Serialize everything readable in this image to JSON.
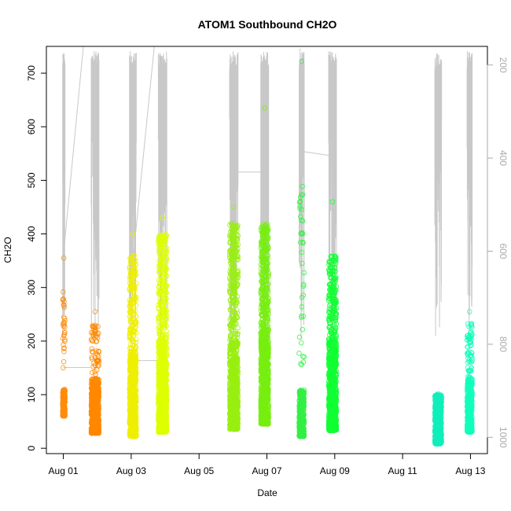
{
  "chart_data": {
    "type": "scatter",
    "title": "ATOM1 Southbound CH2O",
    "xlabel": "Date",
    "ylabel": "CH2O",
    "x_range_days": [
      -0.5,
      12.5
    ],
    "x_ticks": [
      {
        "day": 0,
        "label": "Aug 01"
      },
      {
        "day": 2,
        "label": "Aug 03"
      },
      {
        "day": 4,
        "label": "Aug 05"
      },
      {
        "day": 6,
        "label": "Aug 07"
      },
      {
        "day": 8,
        "label": "Aug 09"
      },
      {
        "day": 10,
        "label": "Aug 11"
      },
      {
        "day": 12,
        "label": "Aug 13"
      }
    ],
    "ylim": [
      -10,
      750
    ],
    "y_ticks": [
      0,
      100,
      200,
      300,
      400,
      500,
      600,
      700
    ],
    "right_axis": {
      "color": "#aaaaaa",
      "range": [
        1035,
        160
      ],
      "ticks": [
        200,
        400,
        600,
        800,
        1000
      ]
    },
    "grid": false,
    "legend": "none",
    "flight_clusters": [
      {
        "x_start": -0.02,
        "x_end": 0.05,
        "base_lo": 60,
        "base_hi": 110,
        "upper_lo": 150,
        "upper_hi": 300,
        "n_upper": 30,
        "max": 355,
        "color": "#FF8C0A",
        "n": 220
      },
      {
        "x_start": 0.82,
        "x_end": 1.05,
        "base_lo": 28,
        "base_hi": 130,
        "upper_lo": 130,
        "upper_hi": 230,
        "n_upper": 60,
        "max": 255,
        "color": "#FF8800",
        "n": 650
      },
      {
        "x_start": 1.95,
        "x_end": 2.15,
        "base_lo": 22,
        "base_hi": 180,
        "upper_lo": 180,
        "upper_hi": 360,
        "n_upper": 180,
        "max": 400,
        "color": "#EEEE00",
        "n": 650
      },
      {
        "x_start": 2.8,
        "x_end": 3.05,
        "base_lo": 30,
        "base_hi": 200,
        "upper_lo": 200,
        "upper_hi": 400,
        "n_upper": 260,
        "max": 430,
        "color": "#DDFF00",
        "n": 800
      },
      {
        "x_start": 4.9,
        "x_end": 5.15,
        "base_lo": 35,
        "base_hi": 200,
        "upper_lo": 200,
        "upper_hi": 420,
        "n_upper": 260,
        "max": 450,
        "color": "#99EE11",
        "n": 750
      },
      {
        "x_start": 5.82,
        "x_end": 6.05,
        "base_lo": 45,
        "base_hi": 220,
        "upper_lo": 220,
        "upper_hi": 420,
        "n_upper": 320,
        "max": 635,
        "color": "#77EE11",
        "n": 900
      },
      {
        "x_start": 6.95,
        "x_end": 7.1,
        "base_lo": 22,
        "base_hi": 110,
        "upper_lo": 150,
        "upper_hi": 520,
        "n_upper": 40,
        "max": 722,
        "color": "#33EE44",
        "n": 350
      },
      {
        "x_start": 7.82,
        "x_end": 8.05,
        "base_lo": 33,
        "base_hi": 200,
        "upper_lo": 200,
        "upper_hi": 360,
        "n_upper": 200,
        "max": 460,
        "color": "#11FF33",
        "n": 800
      },
      {
        "x_start": 10.95,
        "x_end": 11.15,
        "base_lo": 8,
        "base_hi": 100,
        "upper_lo": 60,
        "upper_hi": 100,
        "n_upper": 40,
        "max": 102,
        "color": "#11EEBB",
        "n": 500
      },
      {
        "x_start": 11.9,
        "x_end": 12.05,
        "base_lo": 30,
        "base_hi": 130,
        "upper_lo": 130,
        "upper_hi": 235,
        "n_upper": 70,
        "max": 255,
        "color": "#11FFBB",
        "n": 450
      }
    ],
    "altitude_track_color": "#c8c8c8"
  }
}
